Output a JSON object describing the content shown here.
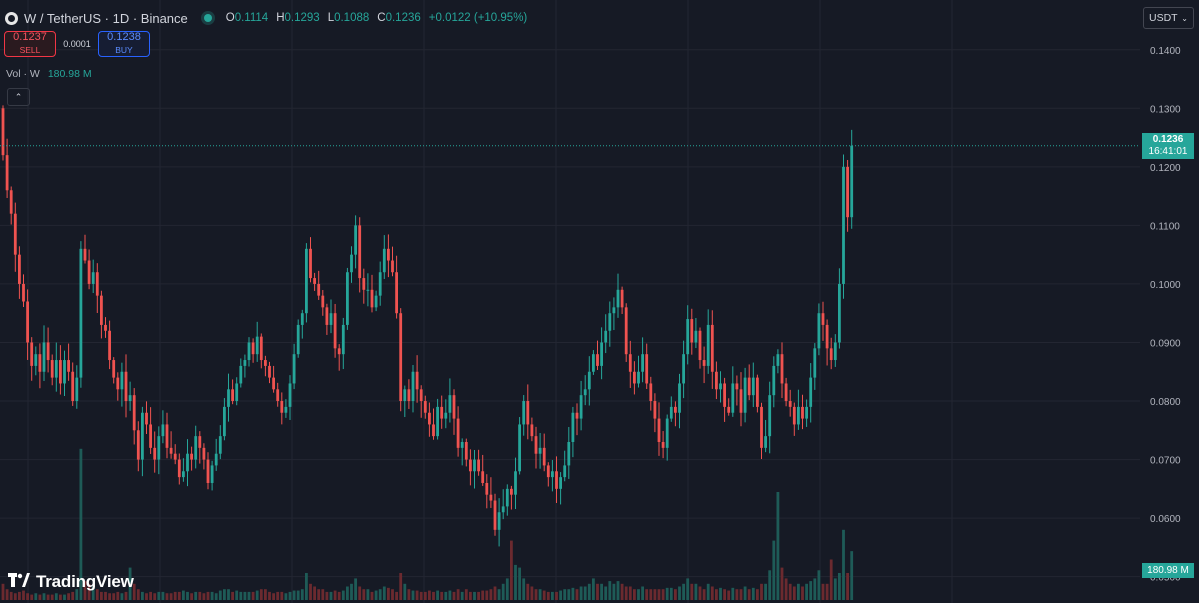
{
  "header": {
    "symbol": "W / TetherUS · 1D · Binance",
    "ohlc": [
      {
        "k": "O",
        "v": "0.1114"
      },
      {
        "k": "H",
        "v": "0.1293"
      },
      {
        "k": "L",
        "v": "0.1088"
      },
      {
        "k": "C",
        "v": "0.1236"
      }
    ],
    "change": "+0.0122 (+10.95%)"
  },
  "trade": {
    "sell_price": "0.1237",
    "sell_label": "SELL",
    "spread": "0.0001",
    "buy_price": "0.1238",
    "buy_label": "BUY"
  },
  "volume_label": {
    "name": "Vol · W",
    "value": "180.98 M"
  },
  "currency_selector": "USDT",
  "last_price": {
    "price": "0.1236",
    "countdown": "16:41:01"
  },
  "volume_tag": "180.98 M",
  "logo_text": "TradingView",
  "colors": {
    "up": "#26a69a",
    "down": "#ef5350",
    "background": "#161a25",
    "grid": "#232632"
  },
  "chart_data": {
    "type": "candlestick",
    "title": "W / TetherUS · 1D · Binance",
    "y_ticks": [
      "0.1400",
      "0.1300",
      "0.1200",
      "0.1100",
      "0.1000",
      "0.0900",
      "0.0800",
      "0.0700",
      "0.0600",
      "0.0500"
    ],
    "ylim": [
      0.0455,
      0.1485
    ],
    "grid": true,
    "current_price_line": 0.1236,
    "closes": [
      0.122,
      0.116,
      0.112,
      0.105,
      0.1,
      0.097,
      0.09,
      0.086,
      0.088,
      0.085,
      0.09,
      0.087,
      0.084,
      0.087,
      0.083,
      0.087,
      0.085,
      0.08,
      0.084,
      0.106,
      0.104,
      0.1,
      0.102,
      0.098,
      0.093,
      0.092,
      0.087,
      0.084,
      0.082,
      0.085,
      0.08,
      0.081,
      0.075,
      0.07,
      0.078,
      0.076,
      0.072,
      0.07,
      0.074,
      0.076,
      0.072,
      0.071,
      0.07,
      0.067,
      0.068,
      0.071,
      0.07,
      0.074,
      0.072,
      0.07,
      0.066,
      0.069,
      0.071,
      0.074,
      0.079,
      0.082,
      0.08,
      0.083,
      0.086,
      0.087,
      0.09,
      0.088,
      0.091,
      0.087,
      0.086,
      0.084,
      0.082,
      0.08,
      0.078,
      0.079,
      0.083,
      0.088,
      0.093,
      0.095,
      0.106,
      0.101,
      0.1,
      0.098,
      0.096,
      0.093,
      0.095,
      0.089,
      0.088,
      0.093,
      0.102,
      0.105,
      0.11,
      0.101,
      0.099,
      0.099,
      0.096,
      0.098,
      0.102,
      0.106,
      0.104,
      0.102,
      0.095,
      0.08,
      0.082,
      0.08,
      0.085,
      0.082,
      0.08,
      0.078,
      0.076,
      0.074,
      0.079,
      0.077,
      0.078,
      0.081,
      0.077,
      0.072,
      0.073,
      0.07,
      0.068,
      0.07,
      0.068,
      0.066,
      0.064,
      0.063,
      0.058,
      0.061,
      0.062,
      0.065,
      0.064,
      0.068,
      0.076,
      0.08,
      0.076,
      0.074,
      0.071,
      0.072,
      0.069,
      0.067,
      0.068,
      0.065,
      0.067,
      0.069,
      0.073,
      0.078,
      0.077,
      0.081,
      0.082,
      0.085,
      0.088,
      0.086,
      0.09,
      0.092,
      0.095,
      0.096,
      0.099,
      0.096,
      0.088,
      0.085,
      0.083,
      0.085,
      0.088,
      0.083,
      0.08,
      0.077,
      0.073,
      0.072,
      0.077,
      0.079,
      0.078,
      0.083,
      0.088,
      0.094,
      0.09,
      0.092,
      0.087,
      0.086,
      0.093,
      0.085,
      0.082,
      0.083,
      0.079,
      0.078,
      0.083,
      0.082,
      0.078,
      0.084,
      0.081,
      0.084,
      0.079,
      0.072,
      0.074,
      0.081,
      0.086,
      0.088,
      0.083,
      0.08,
      0.079,
      0.076,
      0.079,
      0.077,
      0.079,
      0.084,
      0.089,
      0.095,
      0.093,
      0.089,
      0.087,
      0.09,
      0.1,
      0.12,
      0.1114,
      0.1236
    ],
    "volumes_millions": [
      60,
      40,
      30,
      25,
      30,
      35,
      25,
      20,
      25,
      20,
      25,
      20,
      20,
      25,
      20,
      20,
      25,
      30,
      40,
      560,
      70,
      60,
      50,
      40,
      30,
      30,
      25,
      25,
      30,
      25,
      30,
      120,
      60,
      40,
      30,
      25,
      30,
      25,
      30,
      30,
      25,
      25,
      30,
      30,
      35,
      30,
      25,
      30,
      30,
      25,
      30,
      30,
      25,
      35,
      40,
      40,
      30,
      35,
      30,
      30,
      30,
      30,
      35,
      40,
      40,
      30,
      25,
      30,
      30,
      25,
      30,
      35,
      35,
      40,
      100,
      60,
      50,
      40,
      40,
      30,
      30,
      35,
      30,
      35,
      50,
      60,
      80,
      50,
      40,
      40,
      30,
      35,
      40,
      50,
      45,
      40,
      30,
      100,
      60,
      40,
      35,
      35,
      30,
      30,
      35,
      30,
      35,
      30,
      30,
      35,
      30,
      40,
      30,
      40,
      30,
      30,
      30,
      35,
      35,
      40,
      50,
      40,
      60,
      80,
      220,
      130,
      120,
      80,
      60,
      50,
      40,
      40,
      35,
      30,
      30,
      30,
      35,
      40,
      40,
      45,
      40,
      50,
      50,
      60,
      80,
      60,
      60,
      50,
      70,
      60,
      70,
      60,
      50,
      50,
      40,
      40,
      50,
      40,
      40,
      40,
      40,
      40,
      45,
      45,
      40,
      50,
      60,
      80,
      60,
      60,
      50,
      40,
      60,
      50,
      40,
      45,
      40,
      35,
      45,
      40,
      40,
      50,
      40,
      45,
      40,
      60,
      60,
      110,
      220,
      400,
      120,
      80,
      60,
      50,
      60,
      50,
      60,
      70,
      80,
      110,
      60,
      60,
      150,
      80,
      100,
      260,
      100,
      181
    ]
  }
}
